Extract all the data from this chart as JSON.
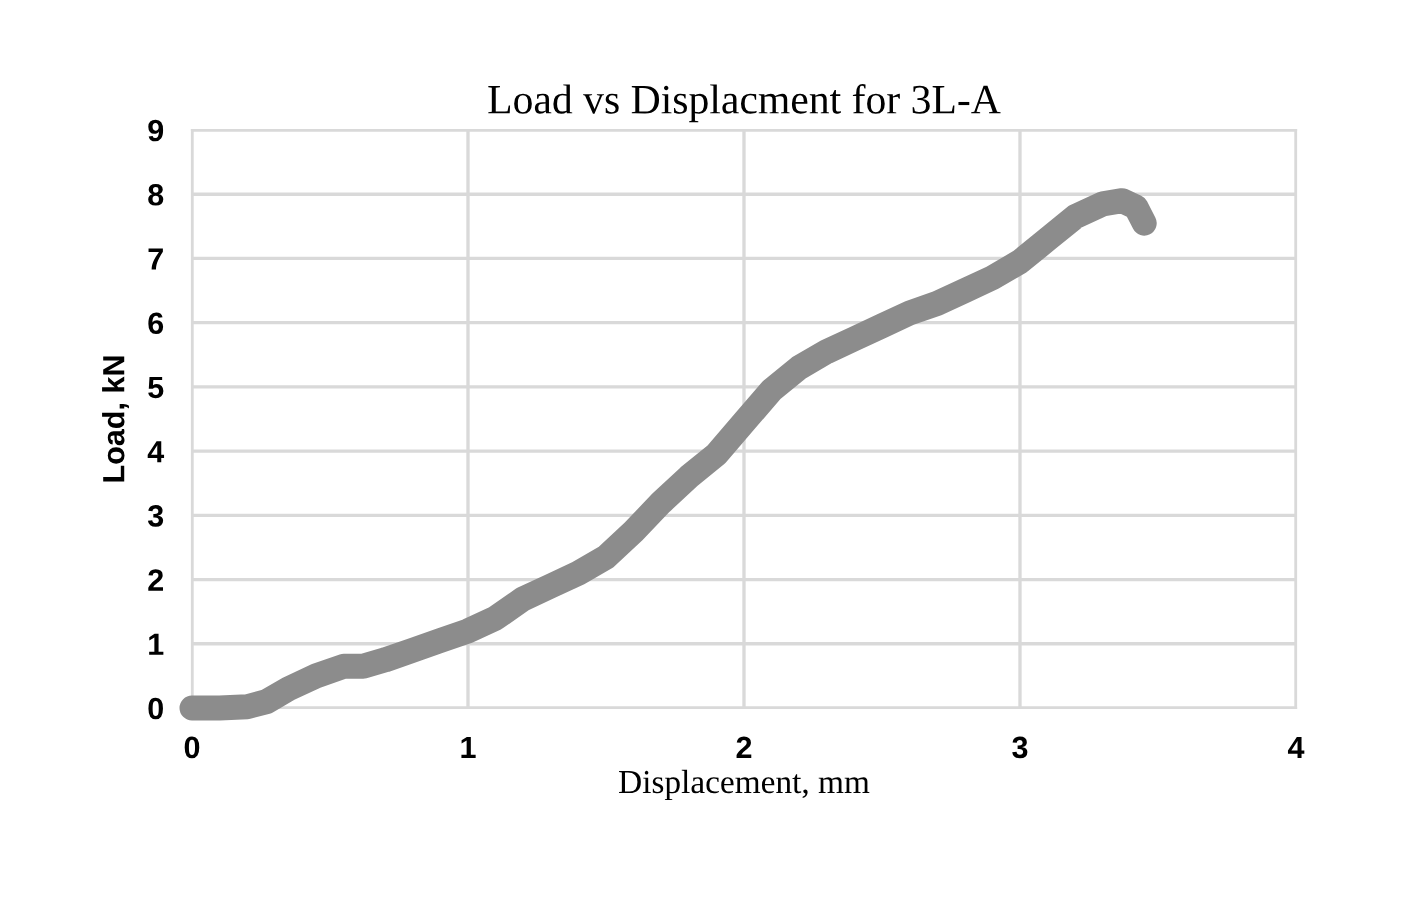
{
  "chart_data": {
    "type": "line",
    "title": "Load vs Displacment for 3L-A",
    "xlabel": "Displacement, mm",
    "ylabel": "Load, kN",
    "xlim": [
      0,
      4
    ],
    "xticks": [
      0,
      1,
      2,
      3,
      4
    ],
    "ylim": [
      0,
      9
    ],
    "yticks": [
      0,
      1,
      2,
      3,
      4,
      5,
      6,
      7,
      8,
      9
    ],
    "grid": true,
    "line_style": "solid",
    "series": [
      {
        "color": "#8c8c8c",
        "x": [
          0,
          0.1,
          0.2,
          0.27,
          0.35,
          0.45,
          0.55,
          0.62,
          0.7,
          0.8,
          0.9,
          1.0,
          1.1,
          1.2,
          1.3,
          1.4,
          1.5,
          1.6,
          1.7,
          1.8,
          1.9,
          2.0,
          2.1,
          2.2,
          2.3,
          2.4,
          2.5,
          2.6,
          2.7,
          2.8,
          2.9,
          3.0,
          3.1,
          3.2,
          3.3,
          3.37,
          3.42,
          3.45
        ],
        "values": [
          0,
          0,
          0.02,
          0.1,
          0.3,
          0.5,
          0.65,
          0.65,
          0.75,
          0.9,
          1.05,
          1.2,
          1.4,
          1.7,
          1.9,
          2.1,
          2.35,
          2.75,
          3.2,
          3.6,
          3.95,
          4.45,
          4.95,
          5.3,
          5.55,
          5.75,
          5.95,
          6.15,
          6.3,
          6.5,
          6.7,
          6.95,
          7.3,
          7.65,
          7.85,
          7.9,
          7.8,
          7.55
        ]
      }
    ]
  }
}
